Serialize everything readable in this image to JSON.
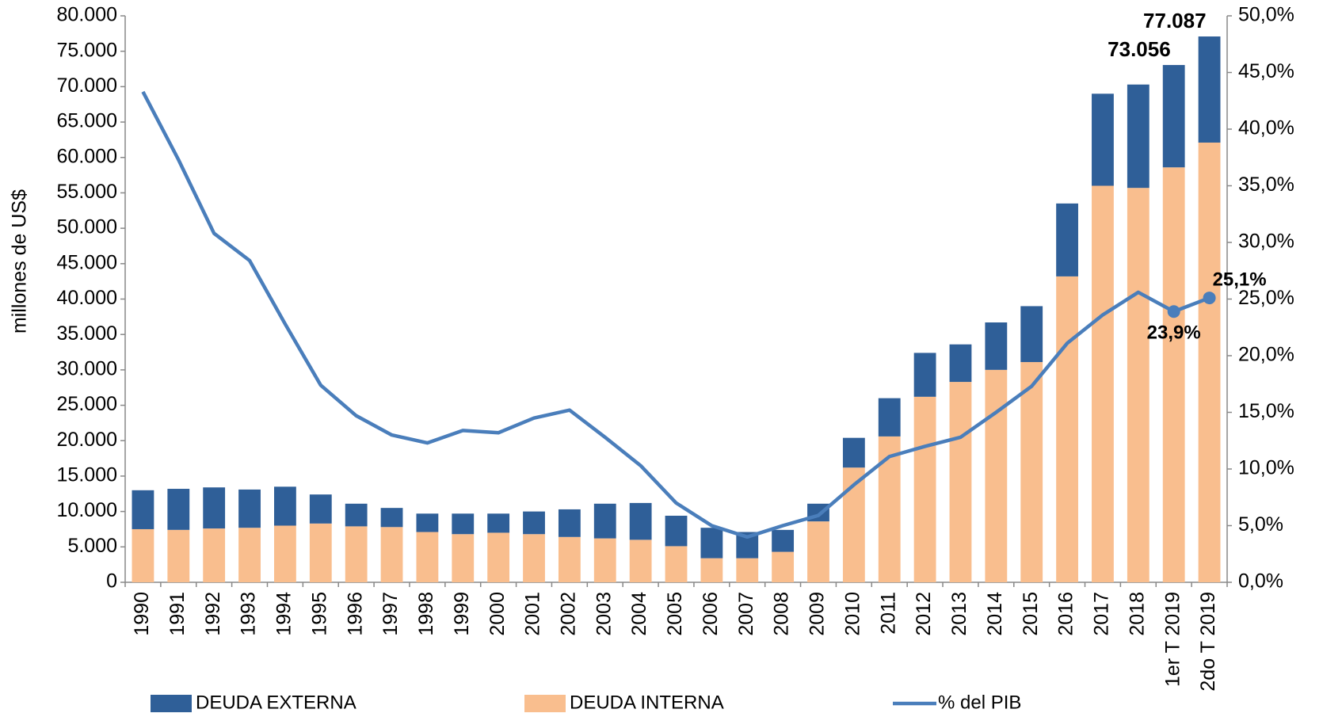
{
  "chart_data": {
    "type": "bar",
    "stacked": true,
    "y_label": "millones de US$",
    "categories": [
      "1990",
      "1991",
      "1992",
      "1993",
      "1994",
      "1995",
      "1996",
      "1997",
      "1998",
      "1999",
      "2000",
      "2001",
      "2002",
      "2003",
      "2004",
      "2005",
      "2006",
      "2007",
      "2008",
      "2009",
      "2010",
      "2011",
      "2012",
      "2013",
      "2014",
      "2015",
      "2016",
      "2017",
      "2018",
      "1er T 2019",
      "2do T 2019"
    ],
    "series": [
      {
        "name": "DEUDA EXTERNA",
        "type": "bar",
        "color": "#2f5f98",
        "values": [
          5500,
          5800,
          5800,
          5400,
          5500,
          4100,
          3200,
          2700,
          2600,
          2900,
          2700,
          3200,
          3900,
          4900,
          5200,
          4300,
          4300,
          3700,
          3100,
          2500,
          4200,
          5400,
          6200,
          5300,
          6700,
          7900,
          10300,
          13000,
          14600,
          14456,
          14987
        ]
      },
      {
        "name": "DEUDA INTERNA",
        "type": "bar",
        "color": "#f9be8e",
        "values": [
          7500,
          7400,
          7600,
          7700,
          8000,
          8300,
          7900,
          7800,
          7100,
          6800,
          7000,
          6800,
          6400,
          6200,
          6000,
          5100,
          3400,
          3400,
          4300,
          8600,
          16200,
          20600,
          26200,
          28300,
          30000,
          31100,
          43200,
          56000,
          55700,
          58600,
          62100
        ]
      },
      {
        "name": "% del PIB",
        "type": "line",
        "axis": "y2",
        "color": "#4a7ebb",
        "values": [
          43.3,
          37.3,
          30.8,
          28.4,
          22.8,
          17.4,
          14.7,
          13.0,
          12.3,
          13.4,
          13.2,
          14.5,
          15.2,
          12.8,
          10.3,
          7.0,
          5.0,
          4.0,
          5.0,
          5.9,
          8.6,
          11.1,
          12.0,
          12.8,
          15.0,
          17.3,
          21.1,
          23.6,
          25.6,
          23.9,
          25.1
        ],
        "value_labels": [
          null,
          null,
          null,
          null,
          null,
          null,
          null,
          null,
          null,
          null,
          null,
          null,
          null,
          null,
          null,
          null,
          null,
          null,
          null,
          null,
          null,
          null,
          null,
          null,
          null,
          null,
          null,
          null,
          null,
          "23,9%",
          "25,1%"
        ]
      }
    ],
    "annotations": [
      {
        "text": "73.056",
        "x": "1er T 2019",
        "value": 73056
      },
      {
        "text": "77.087",
        "x": "2do T 2019",
        "value": 77087
      }
    ],
    "ylim": [
      0,
      80000
    ],
    "yticks": [
      0,
      {
        "value": 5000,
        "label": "5.000"
      },
      {
        "value": 10000,
        "label": "10.000"
      },
      {
        "value": 15000,
        "label": "15.000"
      },
      {
        "value": 20000,
        "label": "20.000"
      },
      {
        "value": 25000,
        "label": "25.000"
      },
      {
        "value": 30000,
        "label": "30.000"
      },
      {
        "value": 35000,
        "label": "35.000"
      },
      {
        "value": 40000,
        "label": "40.000"
      },
      {
        "value": 45000,
        "label": "45.000"
      },
      {
        "value": 50000,
        "label": "50.000"
      },
      {
        "value": 55000,
        "label": "55.000"
      },
      {
        "value": 60000,
        "label": "60.000"
      },
      {
        "value": 65000,
        "label": "65.000"
      },
      {
        "value": 70000,
        "label": "70.000"
      },
      {
        "value": 75000,
        "label": "75.000"
      },
      {
        "value": 80000,
        "label": "80.000"
      }
    ],
    "y2lim": [
      0,
      50
    ],
    "y2ticks": [
      {
        "value": 0,
        "label": "0,0%"
      },
      {
        "value": 5,
        "label": "5,0%"
      },
      {
        "value": 10,
        "label": "10,0%"
      },
      {
        "value": 15,
        "label": "15,0%"
      },
      {
        "value": 20,
        "label": "20,0%"
      },
      {
        "value": 25,
        "label": "25,0%"
      },
      {
        "value": 30,
        "label": "30,0%"
      },
      {
        "value": 35,
        "label": "35,0%"
      },
      {
        "value": 40,
        "label": "40,0%"
      },
      {
        "value": 45,
        "label": "45,0%"
      },
      {
        "value": 50,
        "label": "50,0%"
      }
    ],
    "grid": true,
    "legend": "bottom"
  }
}
